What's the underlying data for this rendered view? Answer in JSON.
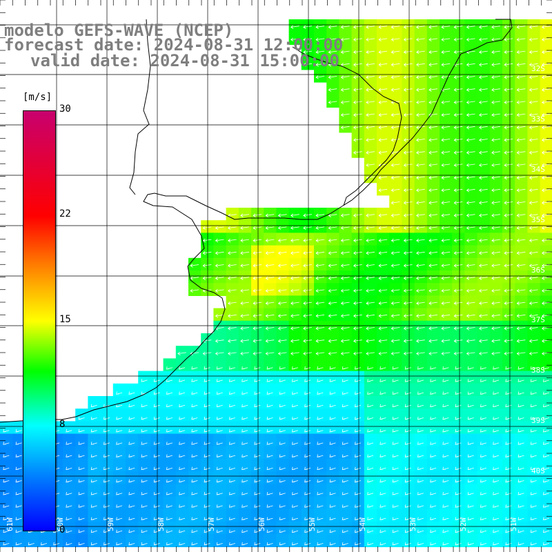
{
  "title": {
    "line1": "modelo GEFS-WAVE (NCEP)",
    "line2": "forecast date: 2024-08-31 12:00:00",
    "line3": "valid date: 2024-08-31 15:00:00"
  },
  "colorbar": {
    "unit": "[m/s]",
    "ticks": [
      "30",
      "22",
      "15",
      "8",
      "0"
    ],
    "range": [
      0,
      30
    ]
  },
  "map": {
    "latitude_labels": [
      "32S",
      "33S",
      "34S",
      "35S",
      "36S",
      "37S",
      "38S",
      "39S",
      "40S"
    ],
    "longitude_labels": [
      "61W",
      "60W",
      "59W",
      "58W",
      "57W",
      "56W",
      "55W",
      "54W",
      "53W",
      "52W",
      "51W"
    ],
    "lat_range": [
      -41.5,
      -31.0
    ],
    "lon_range": [
      -61.5,
      -50.5
    ],
    "field": "wind speed",
    "wind_direction": "from northeast"
  },
  "colors": {
    "title_gray": "#7f7f7f",
    "land": "#ffffff",
    "grid": "#000000",
    "arrows": "#ffffff"
  }
}
